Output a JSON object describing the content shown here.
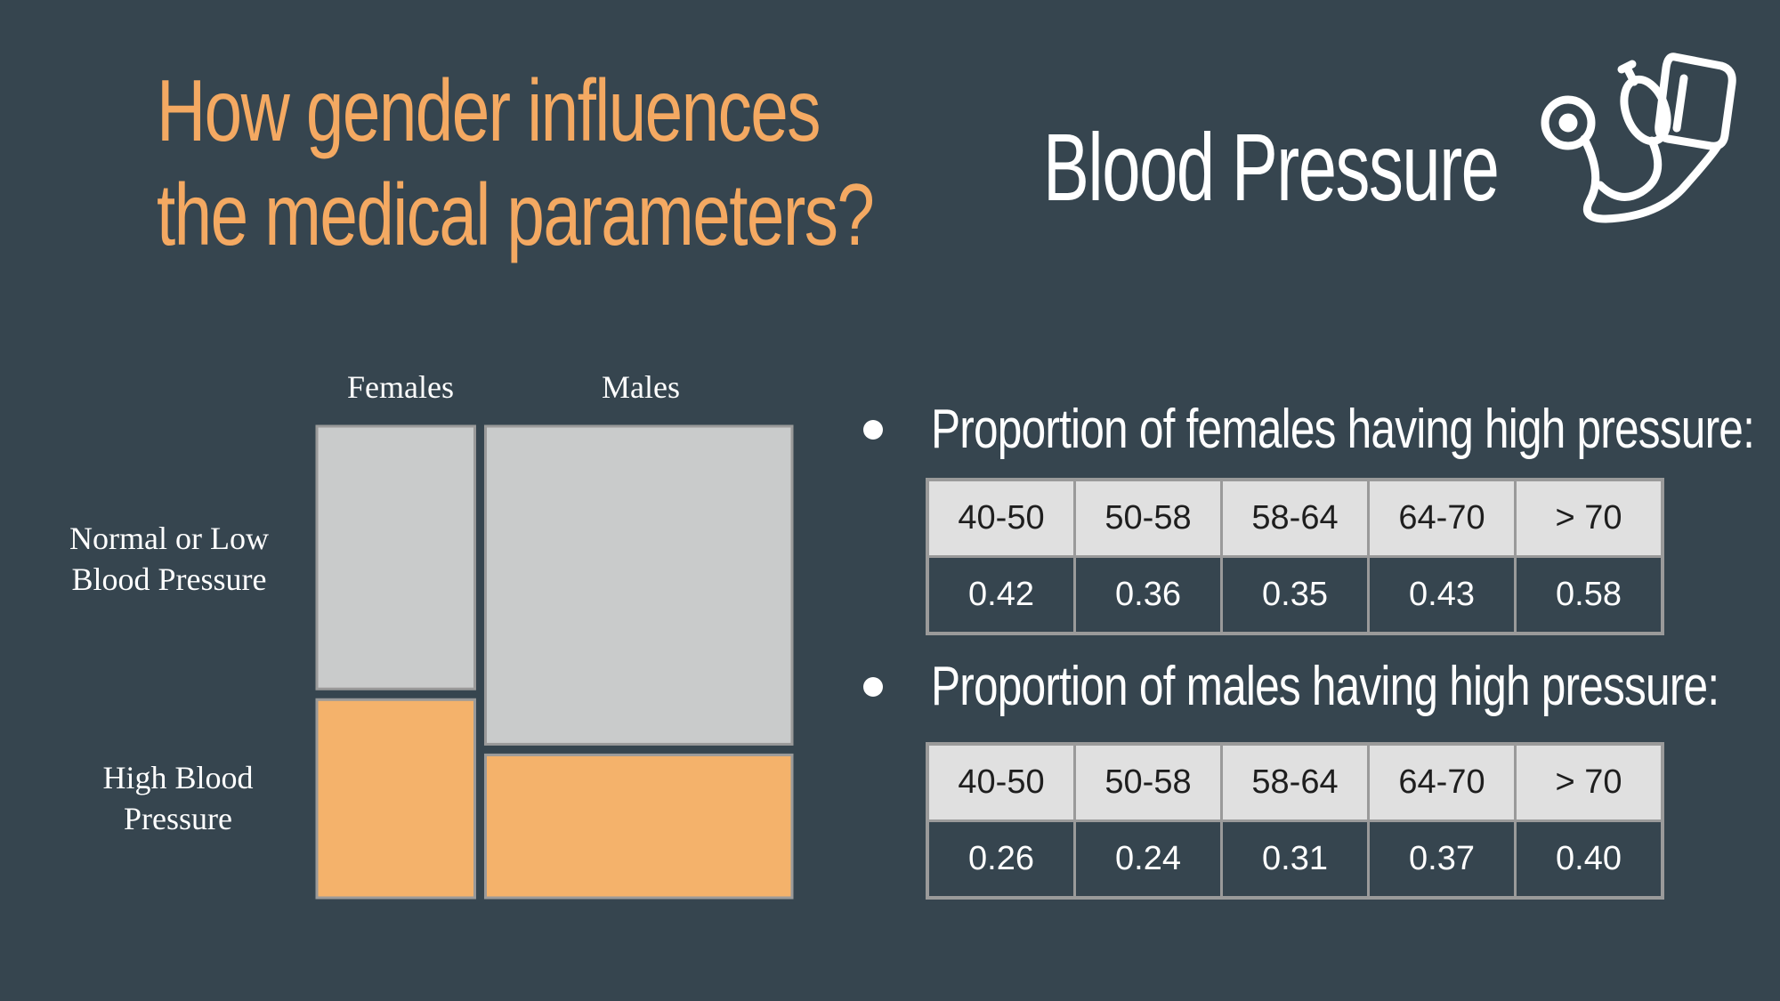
{
  "title": {
    "line1": "How gender influences",
    "line2": "the medical parameters?"
  },
  "subtitle": "Blood Pressure",
  "icons": {
    "header": "blood-pressure-monitor-icon"
  },
  "colors": {
    "background": "#36454f",
    "title": "#f4a962",
    "normal": "#c9cbcb",
    "high": "#f4b26b"
  },
  "chart_data": {
    "type": "mosaic",
    "columns": [
      "Females",
      "Males"
    ],
    "column_widths": [
      0.34,
      0.66
    ],
    "rows": [
      "Normal or Low Blood Pressure",
      "High Blood Pressure"
    ],
    "row_labels": {
      "normal_line1": "Normal or Low",
      "normal_line2": "Blood Pressure",
      "high_line1": "High Blood",
      "high_line2": "Pressure"
    },
    "high_fraction": [
      0.43,
      0.31
    ]
  },
  "females": {
    "label": "Proportion of females having high pressure:",
    "headers": [
      "40-50",
      "50-58",
      "58-64",
      "64-70",
      "> 70"
    ],
    "values": [
      "0.42",
      "0.36",
      "0.35",
      "0.43",
      "0.58"
    ]
  },
  "males": {
    "label": "Proportion of males having high pressure:",
    "headers": [
      "40-50",
      "50-58",
      "58-64",
      "64-70",
      "> 70"
    ],
    "values": [
      "0.26",
      "0.24",
      "0.31",
      "0.37",
      "0.40"
    ]
  }
}
